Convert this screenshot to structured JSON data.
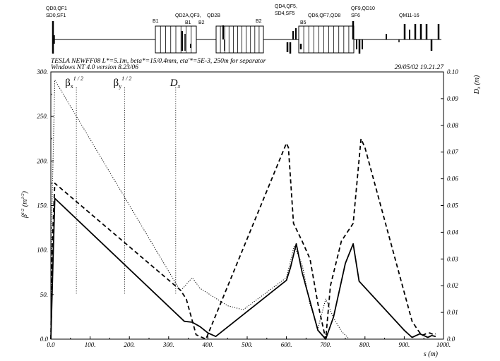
{
  "header": {
    "title": "TESLA NEWFF08 L*=5.1m, beta*=15/0.4mm, eta'*=5E-3, 250m for separator",
    "subtitle": "Windows NT 4.0 version 8.23/06",
    "timestamp": "29/05/02  19.21.27"
  },
  "lattice_labels": [
    {
      "text": "QD0,QF1",
      "s": 0
    },
    {
      "text": "SD0,SF1",
      "s": 0
    },
    {
      "text": "B1",
      "s": 150
    },
    {
      "text": "QD2A,QF3,",
      "s": 240
    },
    {
      "text": "B1",
      "s": 265
    },
    {
      "text": "B2",
      "s": 287
    },
    {
      "text": "QD2B",
      "s": 325
    },
    {
      "text": "B2",
      "s": 385
    },
    {
      "text": "QD4,QF5,",
      "s": 435
    },
    {
      "text": "SD4,SF5",
      "s": 435
    },
    {
      "text": "B5",
      "s": 470
    },
    {
      "text": "QD6,QF7,QD8",
      "s": 505
    },
    {
      "text": "QF9,QD10",
      "s": 595
    },
    {
      "text": "SF6",
      "s": 595
    },
    {
      "text": "QM11-16",
      "s": 735
    }
  ],
  "chart_data": {
    "type": "line",
    "xlabel": "s (m)",
    "ylabel_left": "β1/2 (m1/2)",
    "ylabel_right": "Dx (m)",
    "xlim": [
      0,
      1000
    ],
    "ylim_left": [
      0,
      300
    ],
    "ylim_right": [
      0,
      0.1
    ],
    "x_ticks": [
      "0.0",
      "100.",
      "200.",
      "300.",
      "400.",
      "500.",
      "600.",
      "700.",
      "800.",
      "900.",
      "1000."
    ],
    "y_left_ticks": [
      "0.0",
      "50.",
      "100.",
      "150.",
      "200.",
      "250.",
      "300."
    ],
    "y_right_ticks": [
      "0.0",
      "0.01",
      "0.02",
      "0.03",
      "0.04",
      "0.05",
      "0.06",
      "0.07",
      "0.08",
      "0.09",
      "0.10"
    ],
    "legend": [
      {
        "label": "βx",
        "sup": "1 / 2",
        "s": 65,
        "style": "solid"
      },
      {
        "label": "βy",
        "sup": "1 / 2",
        "s": 188,
        "style": "dashed"
      },
      {
        "label": "Dx",
        "s": 318,
        "style": "dotted"
      }
    ],
    "series": [
      {
        "name": "βx1/2",
        "axis": "left",
        "style": "solid",
        "x": [
          0,
          5,
          10,
          340,
          360,
          380,
          400,
          420,
          600,
          610,
          625,
          640,
          680,
          700,
          720,
          750,
          770,
          785,
          900,
          920,
          940,
          950,
          960,
          970,
          980
        ],
        "y": [
          0,
          80,
          158,
          20,
          19,
          14,
          7,
          3,
          66,
          80,
          107,
          75,
          10,
          0,
          25,
          85,
          107,
          65,
          10,
          2,
          6,
          4,
          2,
          4,
          3
        ]
      },
      {
        "name": "βy1/2",
        "axis": "left",
        "style": "dashed",
        "x": [
          0,
          3,
          10,
          330,
          345,
          370,
          395,
          600,
          605,
          618,
          640,
          660,
          680,
          700,
          712,
          740,
          770,
          790,
          800,
          920,
          935,
          945,
          955,
          965,
          975,
          980
        ],
        "y": [
          0,
          100,
          175,
          55,
          45,
          5,
          0,
          220,
          215,
          130,
          110,
          90,
          40,
          0,
          60,
          110,
          130,
          225,
          215,
          20,
          10,
          4,
          6,
          7,
          5,
          6
        ]
      },
      {
        "name": "Dx",
        "axis": "right",
        "style": "dotted",
        "x": [
          0,
          3,
          10,
          330,
          360,
          380,
          450,
          490,
          600,
          620,
          640,
          660,
          680,
          700,
          720,
          740,
          760
        ],
        "y": [
          0,
          0.05,
          0.097,
          0.018,
          0.023,
          0.019,
          0.0125,
          0.011,
          0.023,
          0.035,
          0.028,
          0.013,
          0.004,
          0.015,
          0.008,
          0.003,
          0
        ]
      }
    ]
  }
}
